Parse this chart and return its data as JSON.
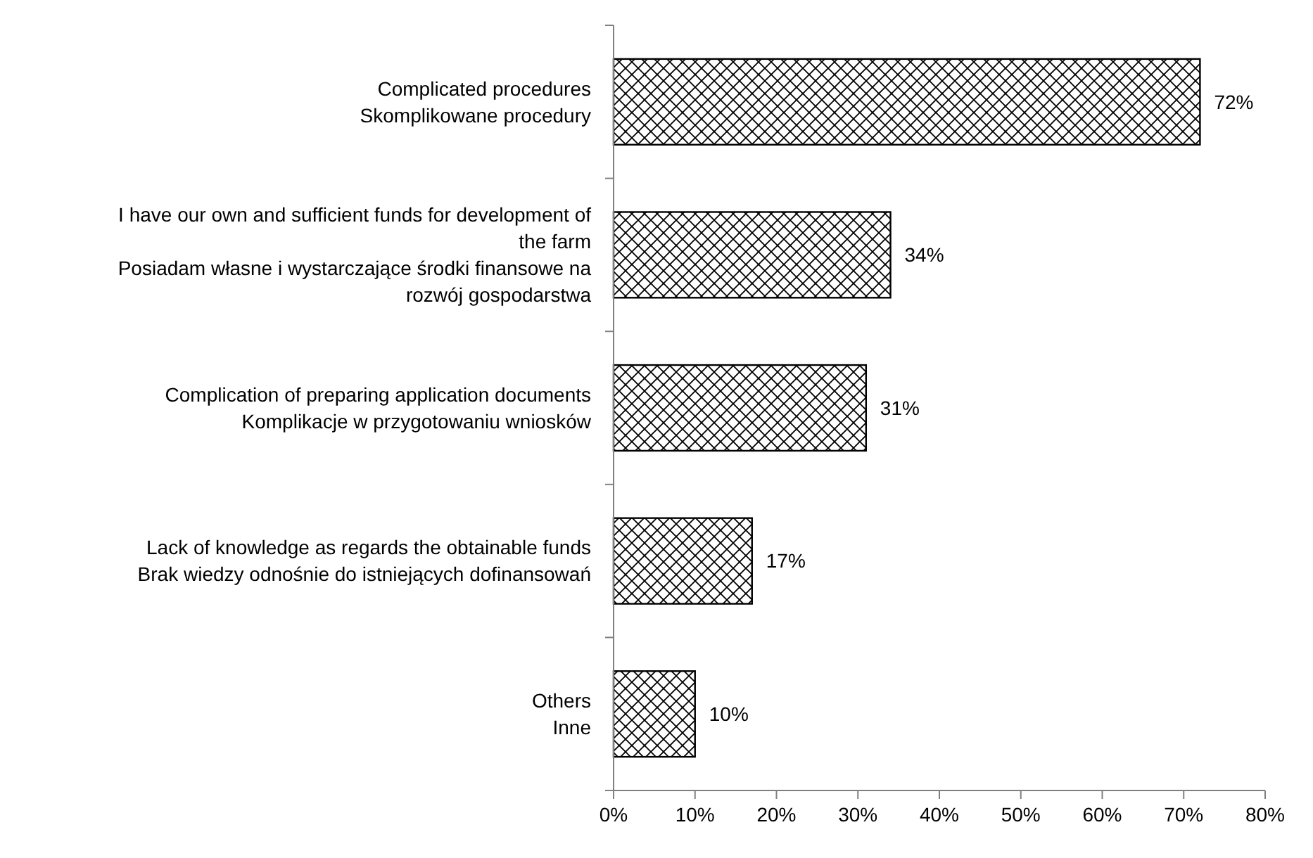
{
  "chart_data": {
    "type": "bar",
    "orientation": "horizontal",
    "categories": [
      "Complicated procedures\nSkomplikowane procedury",
      "I have our own and sufficient funds for development of the farm\nPosiadam własne i wystarczające środki finansowe na rozwój gospodarstwa",
      "Complication of preparing application documents\nKomplikacje w przygotowaniu wniosków",
      "Lack of knowledge as regards the obtainable funds\nBrak wiedzy odnośnie do istniejących dofinansowań",
      "Others\nInne"
    ],
    "values": [
      72,
      34,
      31,
      17,
      10
    ],
    "value_labels": [
      "72%",
      "34%",
      "31%",
      "17%",
      "10%"
    ],
    "color": "#000000",
    "xlim": [
      0,
      80
    ],
    "xticks": [
      {
        "value": 0,
        "label": "0%"
      },
      {
        "value": 10,
        "label": "10%"
      },
      {
        "value": 20,
        "label": "20%"
      },
      {
        "value": 30,
        "label": "30%"
      },
      {
        "value": 40,
        "label": "40%"
      },
      {
        "value": 50,
        "label": "50%"
      },
      {
        "value": 60,
        "label": "60%"
      },
      {
        "value": 70,
        "label": "70%"
      },
      {
        "value": 80,
        "label": "80%"
      }
    ],
    "grid": false
  }
}
